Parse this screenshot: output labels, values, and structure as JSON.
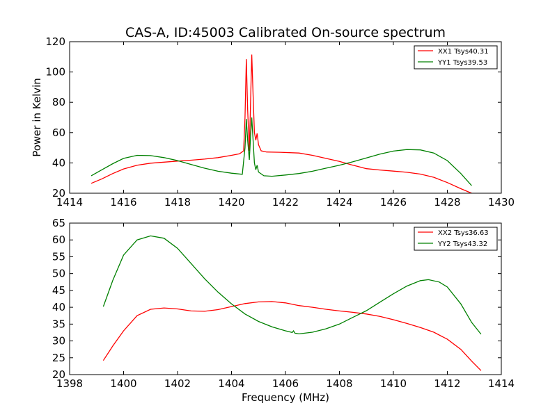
{
  "title": "CAS-A, ID:45003 Calibrated On-source spectrum",
  "colors": {
    "XX": "#ff0000",
    "YY": "#008000"
  },
  "chart_data": [
    {
      "type": "line",
      "ylabel": "Power in Kelvin",
      "xlabel": "",
      "xlim": [
        1414,
        1430
      ],
      "ylim": [
        20,
        120
      ],
      "xticks": [
        1414,
        1416,
        1418,
        1420,
        1422,
        1424,
        1426,
        1428,
        1430
      ],
      "yticks": [
        20,
        40,
        60,
        80,
        100,
        120
      ],
      "legend_position": "top-right",
      "series": [
        {
          "name": "XX1 Tsys40.31",
          "color": "#ff0000",
          "points": [
            [
              1414.8,
              26.5
            ],
            [
              1415.2,
              29.5
            ],
            [
              1415.6,
              33
            ],
            [
              1416.0,
              36
            ],
            [
              1416.5,
              38.5
            ],
            [
              1417.0,
              39.8
            ],
            [
              1417.5,
              40.5
            ],
            [
              1418.0,
              41.2
            ],
            [
              1418.5,
              41.8
            ],
            [
              1419.0,
              42.5
            ],
            [
              1419.5,
              43.5
            ],
            [
              1420.0,
              45
            ],
            [
              1420.3,
              46
            ],
            [
              1420.45,
              48
            ],
            [
              1420.5,
              70
            ],
            [
              1420.55,
              108.5
            ],
            [
              1420.6,
              75
            ],
            [
              1420.66,
              48
            ],
            [
              1420.7,
              75
            ],
            [
              1420.75,
              111.5
            ],
            [
              1420.8,
              85
            ],
            [
              1420.85,
              60
            ],
            [
              1420.9,
              55
            ],
            [
              1420.95,
              59.5
            ],
            [
              1421.0,
              52
            ],
            [
              1421.1,
              48
            ],
            [
              1421.3,
              47.2
            ],
            [
              1421.8,
              47
            ],
            [
              1422.5,
              46.5
            ],
            [
              1423.0,
              45
            ],
            [
              1423.5,
              43
            ],
            [
              1424.0,
              41
            ],
            [
              1424.5,
              38.5
            ],
            [
              1425.0,
              36.2
            ],
            [
              1425.5,
              35.3
            ],
            [
              1426.0,
              34.6
            ],
            [
              1426.5,
              33.8
            ],
            [
              1427.0,
              32.6
            ],
            [
              1427.5,
              30.5
            ],
            [
              1428.0,
              27
            ],
            [
              1428.5,
              23
            ],
            [
              1428.9,
              20
            ]
          ]
        },
        {
          "name": "YY1 Tsys39.53",
          "color": "#008000",
          "points": [
            [
              1414.8,
              31.5
            ],
            [
              1415.2,
              35.5
            ],
            [
              1415.6,
              39.5
            ],
            [
              1416.0,
              43
            ],
            [
              1416.5,
              45
            ],
            [
              1417.0,
              44.8
            ],
            [
              1417.5,
              43.5
            ],
            [
              1418.0,
              41.5
            ],
            [
              1418.5,
              39
            ],
            [
              1419.0,
              36.5
            ],
            [
              1419.5,
              34.5
            ],
            [
              1420.0,
              33.2
            ],
            [
              1420.4,
              32.5
            ],
            [
              1420.5,
              50
            ],
            [
              1420.55,
              69
            ],
            [
              1420.6,
              55
            ],
            [
              1420.66,
              42
            ],
            [
              1420.7,
              55
            ],
            [
              1420.75,
              70
            ],
            [
              1420.8,
              55
            ],
            [
              1420.85,
              40
            ],
            [
              1420.9,
              35.5
            ],
            [
              1420.95,
              38.5
            ],
            [
              1421.0,
              34
            ],
            [
              1421.2,
              31.5
            ],
            [
              1421.5,
              31.2
            ],
            [
              1422.0,
              32
            ],
            [
              1422.5,
              33
            ],
            [
              1423.0,
              34.5
            ],
            [
              1423.5,
              36.5
            ],
            [
              1424.0,
              38.5
            ],
            [
              1424.5,
              40.8
            ],
            [
              1425.0,
              43.3
            ],
            [
              1425.5,
              45.8
            ],
            [
              1426.0,
              47.8
            ],
            [
              1426.5,
              48.8
            ],
            [
              1427.0,
              48.6
            ],
            [
              1427.5,
              46.5
            ],
            [
              1428.0,
              41.5
            ],
            [
              1428.5,
              33
            ],
            [
              1428.9,
              25
            ]
          ]
        }
      ]
    },
    {
      "type": "line",
      "ylabel": "",
      "xlabel": "Frequency (MHz)",
      "xlim": [
        1398,
        1414
      ],
      "ylim": [
        20,
        65
      ],
      "xticks": [
        1398,
        1400,
        1402,
        1404,
        1406,
        1408,
        1410,
        1412,
        1414
      ],
      "yticks": [
        20,
        25,
        30,
        35,
        40,
        45,
        50,
        55,
        60,
        65
      ],
      "legend_position": "top-right",
      "series": [
        {
          "name": "XX2 Tsys36.63",
          "color": "#ff0000",
          "points": [
            [
              1399.25,
              24.2
            ],
            [
              1399.6,
              28.5
            ],
            [
              1400.0,
              33
            ],
            [
              1400.5,
              37.5
            ],
            [
              1401.0,
              39.4
            ],
            [
              1401.5,
              39.8
            ],
            [
              1402.0,
              39.5
            ],
            [
              1402.5,
              38.9
            ],
            [
              1403.0,
              38.8
            ],
            [
              1403.5,
              39.3
            ],
            [
              1404.0,
              40.2
            ],
            [
              1404.5,
              41.1
            ],
            [
              1405.0,
              41.6
            ],
            [
              1405.5,
              41.7
            ],
            [
              1406.0,
              41.3
            ],
            [
              1406.5,
              40.5
            ],
            [
              1407.0,
              40
            ],
            [
              1407.5,
              39.4
            ],
            [
              1408.0,
              38.9
            ],
            [
              1408.5,
              38.5
            ],
            [
              1409.0,
              38
            ],
            [
              1409.5,
              37.3
            ],
            [
              1410.0,
              36.3
            ],
            [
              1410.5,
              35.2
            ],
            [
              1411.0,
              34
            ],
            [
              1411.5,
              32.6
            ],
            [
              1412.0,
              30.5
            ],
            [
              1412.5,
              27.5
            ],
            [
              1412.9,
              24
            ],
            [
              1413.25,
              21.2
            ]
          ]
        },
        {
          "name": "YY2 Tsys43.32",
          "color": "#008000",
          "points": [
            [
              1399.25,
              40.2
            ],
            [
              1399.6,
              48
            ],
            [
              1400.0,
              55.5
            ],
            [
              1400.5,
              60
            ],
            [
              1401.0,
              61.2
            ],
            [
              1401.5,
              60.5
            ],
            [
              1402.0,
              57.5
            ],
            [
              1402.5,
              53
            ],
            [
              1403.0,
              48.5
            ],
            [
              1403.5,
              44.5
            ],
            [
              1404.0,
              41
            ],
            [
              1404.5,
              38
            ],
            [
              1405.0,
              35.8
            ],
            [
              1405.5,
              34.2
            ],
            [
              1406.0,
              33
            ],
            [
              1406.25,
              32.5
            ],
            [
              1406.3,
              33
            ],
            [
              1406.35,
              32.3
            ],
            [
              1406.5,
              32.1
            ],
            [
              1407.0,
              32.6
            ],
            [
              1407.5,
              33.6
            ],
            [
              1408.0,
              35
            ],
            [
              1408.5,
              37
            ],
            [
              1409.0,
              39
            ],
            [
              1409.5,
              41.5
            ],
            [
              1410.0,
              44
            ],
            [
              1410.5,
              46.3
            ],
            [
              1411.0,
              47.9
            ],
            [
              1411.3,
              48.2
            ],
            [
              1411.7,
              47.5
            ],
            [
              1412.0,
              46
            ],
            [
              1412.5,
              41
            ],
            [
              1412.9,
              35.5
            ],
            [
              1413.25,
              32
            ]
          ]
        }
      ]
    }
  ]
}
